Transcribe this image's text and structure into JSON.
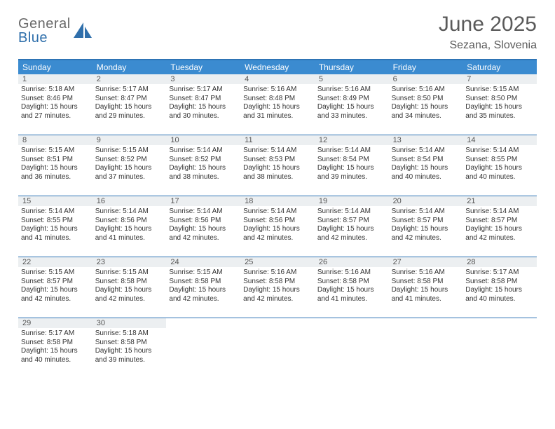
{
  "brand": {
    "word1": "General",
    "word2": "Blue",
    "word1_color": "#6a6a6a",
    "word2_color": "#2f6fab",
    "icon_color": "#2f6fab"
  },
  "header": {
    "title": "June 2025",
    "location": "Sezana, Slovenia",
    "title_color": "#5a5a5a",
    "title_fontsize": 30,
    "location_fontsize": 16
  },
  "calendar_style": {
    "header_bg": "#3b8bd0",
    "header_text_color": "#ffffff",
    "rule_color": "#2e74b5",
    "daynum_bg": "#eceff1",
    "body_font_size": 10,
    "daynum_font_size": 11,
    "weekday_font_size": 12
  },
  "weekdays": [
    "Sunday",
    "Monday",
    "Tuesday",
    "Wednesday",
    "Thursday",
    "Friday",
    "Saturday"
  ],
  "weeks": [
    [
      {
        "n": "1",
        "sr": "Sunrise: 5:18 AM",
        "ss": "Sunset: 8:46 PM",
        "dl1": "Daylight: 15 hours",
        "dl2": "and 27 minutes."
      },
      {
        "n": "2",
        "sr": "Sunrise: 5:17 AM",
        "ss": "Sunset: 8:47 PM",
        "dl1": "Daylight: 15 hours",
        "dl2": "and 29 minutes."
      },
      {
        "n": "3",
        "sr": "Sunrise: 5:17 AM",
        "ss": "Sunset: 8:47 PM",
        "dl1": "Daylight: 15 hours",
        "dl2": "and 30 minutes."
      },
      {
        "n": "4",
        "sr": "Sunrise: 5:16 AM",
        "ss": "Sunset: 8:48 PM",
        "dl1": "Daylight: 15 hours",
        "dl2": "and 31 minutes."
      },
      {
        "n": "5",
        "sr": "Sunrise: 5:16 AM",
        "ss": "Sunset: 8:49 PM",
        "dl1": "Daylight: 15 hours",
        "dl2": "and 33 minutes."
      },
      {
        "n": "6",
        "sr": "Sunrise: 5:16 AM",
        "ss": "Sunset: 8:50 PM",
        "dl1": "Daylight: 15 hours",
        "dl2": "and 34 minutes."
      },
      {
        "n": "7",
        "sr": "Sunrise: 5:15 AM",
        "ss": "Sunset: 8:50 PM",
        "dl1": "Daylight: 15 hours",
        "dl2": "and 35 minutes."
      }
    ],
    [
      {
        "n": "8",
        "sr": "Sunrise: 5:15 AM",
        "ss": "Sunset: 8:51 PM",
        "dl1": "Daylight: 15 hours",
        "dl2": "and 36 minutes."
      },
      {
        "n": "9",
        "sr": "Sunrise: 5:15 AM",
        "ss": "Sunset: 8:52 PM",
        "dl1": "Daylight: 15 hours",
        "dl2": "and 37 minutes."
      },
      {
        "n": "10",
        "sr": "Sunrise: 5:14 AM",
        "ss": "Sunset: 8:52 PM",
        "dl1": "Daylight: 15 hours",
        "dl2": "and 38 minutes."
      },
      {
        "n": "11",
        "sr": "Sunrise: 5:14 AM",
        "ss": "Sunset: 8:53 PM",
        "dl1": "Daylight: 15 hours",
        "dl2": "and 38 minutes."
      },
      {
        "n": "12",
        "sr": "Sunrise: 5:14 AM",
        "ss": "Sunset: 8:54 PM",
        "dl1": "Daylight: 15 hours",
        "dl2": "and 39 minutes."
      },
      {
        "n": "13",
        "sr": "Sunrise: 5:14 AM",
        "ss": "Sunset: 8:54 PM",
        "dl1": "Daylight: 15 hours",
        "dl2": "and 40 minutes."
      },
      {
        "n": "14",
        "sr": "Sunrise: 5:14 AM",
        "ss": "Sunset: 8:55 PM",
        "dl1": "Daylight: 15 hours",
        "dl2": "and 40 minutes."
      }
    ],
    [
      {
        "n": "15",
        "sr": "Sunrise: 5:14 AM",
        "ss": "Sunset: 8:55 PM",
        "dl1": "Daylight: 15 hours",
        "dl2": "and 41 minutes."
      },
      {
        "n": "16",
        "sr": "Sunrise: 5:14 AM",
        "ss": "Sunset: 8:56 PM",
        "dl1": "Daylight: 15 hours",
        "dl2": "and 41 minutes."
      },
      {
        "n": "17",
        "sr": "Sunrise: 5:14 AM",
        "ss": "Sunset: 8:56 PM",
        "dl1": "Daylight: 15 hours",
        "dl2": "and 42 minutes."
      },
      {
        "n": "18",
        "sr": "Sunrise: 5:14 AM",
        "ss": "Sunset: 8:56 PM",
        "dl1": "Daylight: 15 hours",
        "dl2": "and 42 minutes."
      },
      {
        "n": "19",
        "sr": "Sunrise: 5:14 AM",
        "ss": "Sunset: 8:57 PM",
        "dl1": "Daylight: 15 hours",
        "dl2": "and 42 minutes."
      },
      {
        "n": "20",
        "sr": "Sunrise: 5:14 AM",
        "ss": "Sunset: 8:57 PM",
        "dl1": "Daylight: 15 hours",
        "dl2": "and 42 minutes."
      },
      {
        "n": "21",
        "sr": "Sunrise: 5:14 AM",
        "ss": "Sunset: 8:57 PM",
        "dl1": "Daylight: 15 hours",
        "dl2": "and 42 minutes."
      }
    ],
    [
      {
        "n": "22",
        "sr": "Sunrise: 5:15 AM",
        "ss": "Sunset: 8:57 PM",
        "dl1": "Daylight: 15 hours",
        "dl2": "and 42 minutes."
      },
      {
        "n": "23",
        "sr": "Sunrise: 5:15 AM",
        "ss": "Sunset: 8:58 PM",
        "dl1": "Daylight: 15 hours",
        "dl2": "and 42 minutes."
      },
      {
        "n": "24",
        "sr": "Sunrise: 5:15 AM",
        "ss": "Sunset: 8:58 PM",
        "dl1": "Daylight: 15 hours",
        "dl2": "and 42 minutes."
      },
      {
        "n": "25",
        "sr": "Sunrise: 5:16 AM",
        "ss": "Sunset: 8:58 PM",
        "dl1": "Daylight: 15 hours",
        "dl2": "and 42 minutes."
      },
      {
        "n": "26",
        "sr": "Sunrise: 5:16 AM",
        "ss": "Sunset: 8:58 PM",
        "dl1": "Daylight: 15 hours",
        "dl2": "and 41 minutes."
      },
      {
        "n": "27",
        "sr": "Sunrise: 5:16 AM",
        "ss": "Sunset: 8:58 PM",
        "dl1": "Daylight: 15 hours",
        "dl2": "and 41 minutes."
      },
      {
        "n": "28",
        "sr": "Sunrise: 5:17 AM",
        "ss": "Sunset: 8:58 PM",
        "dl1": "Daylight: 15 hours",
        "dl2": "and 40 minutes."
      }
    ],
    [
      {
        "n": "29",
        "sr": "Sunrise: 5:17 AM",
        "ss": "Sunset: 8:58 PM",
        "dl1": "Daylight: 15 hours",
        "dl2": "and 40 minutes."
      },
      {
        "n": "30",
        "sr": "Sunrise: 5:18 AM",
        "ss": "Sunset: 8:58 PM",
        "dl1": "Daylight: 15 hours",
        "dl2": "and 39 minutes."
      },
      null,
      null,
      null,
      null,
      null
    ]
  ]
}
